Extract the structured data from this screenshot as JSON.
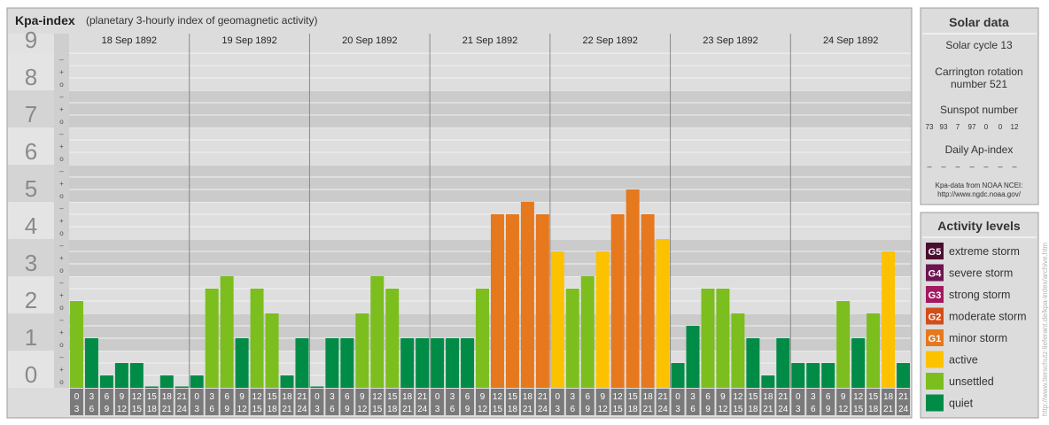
{
  "header": {
    "title": "Kpa-index",
    "subtitle": "(planetary 3-hourly index of geomagnetic activity)"
  },
  "chart_data": {
    "type": "bar",
    "days": [
      "18 Sep 1892",
      "19 Sep 1892",
      "20 Sep 1892",
      "21 Sep 1892",
      "22 Sep 1892",
      "23 Sep 1892",
      "24 Sep 1892"
    ],
    "hour_ranges": [
      [
        "0",
        "3"
      ],
      [
        "3",
        "6"
      ],
      [
        "6",
        "9"
      ],
      [
        "9",
        "12"
      ],
      [
        "12",
        "15"
      ],
      [
        "15",
        "18"
      ],
      [
        "18",
        "21"
      ],
      [
        "21",
        "24"
      ]
    ],
    "y_ticks": [
      "0",
      "1",
      "2",
      "3",
      "4",
      "5",
      "6",
      "7",
      "8",
      "9"
    ],
    "minor_ticks": [
      "o",
      "+",
      "–"
    ],
    "ylim": [
      0,
      9
    ],
    "values": [
      [
        2.333,
        1.333,
        0.333,
        0.667,
        0.667,
        0,
        0.333,
        0
      ],
      [
        0.333,
        2.667,
        3,
        1.333,
        2.667,
        2,
        0.333,
        1.333
      ],
      [
        0,
        1.333,
        1.333,
        2,
        3,
        2.667,
        1.333,
        1.333
      ],
      [
        1.333,
        1.333,
        1.333,
        2.667,
        4.667,
        4.667,
        5,
        4.667
      ],
      [
        3.667,
        2.667,
        3,
        3.667,
        4.667,
        5.333,
        4.667,
        4
      ],
      [
        0.667,
        1.667,
        2.667,
        2.667,
        2,
        1.333,
        0.333,
        1.333
      ],
      [
        0.667,
        0.667,
        0.667,
        2.333,
        1.333,
        2,
        3.667,
        0.667
      ]
    ]
  },
  "solar": {
    "title": "Solar data",
    "cycle": "Solar cycle 13",
    "carrington_line1": "Carrington rotation",
    "carrington_line2": "number 521",
    "sunspot_label": "Sunspot number",
    "sunspots": [
      "73",
      "93",
      "7",
      "97",
      "0",
      "0",
      "12"
    ],
    "ap_label": "Daily Ap-index",
    "ap_values": [
      "–",
      "–",
      "–",
      "–",
      "–",
      "–",
      "–"
    ],
    "source_line1": "Kpa-data from NOAA NCEI:",
    "source_line2": "http://www.ngdc.noaa.gov/"
  },
  "activity": {
    "title": "Activity levels",
    "levels": [
      {
        "badge": "G5",
        "label": "extreme storm",
        "color": "#4a0e2e"
      },
      {
        "badge": "G4",
        "label": "severe storm",
        "color": "#6e1450"
      },
      {
        "badge": "G3",
        "label": "strong storm",
        "color": "#a3185f"
      },
      {
        "badge": "G2",
        "label": "moderate storm",
        "color": "#d24e1c"
      },
      {
        "badge": "G1",
        "label": "minor storm",
        "color": "#e6781e"
      },
      {
        "badge": "",
        "label": "active",
        "color": "#fcc200"
      },
      {
        "badge": "",
        "label": "unsettled",
        "color": "#7cbe1e"
      },
      {
        "badge": "",
        "label": "quiet",
        "color": "#008c46"
      }
    ]
  },
  "colors": {
    "quiet": "#008c46",
    "unsettled": "#7cbe1e",
    "active": "#fcc200",
    "minor": "#e6781e",
    "moderate": "#d24e1c"
  },
  "watermark": "http://www.tierschutz-lieferant.de/kpa-index/archive.htm"
}
